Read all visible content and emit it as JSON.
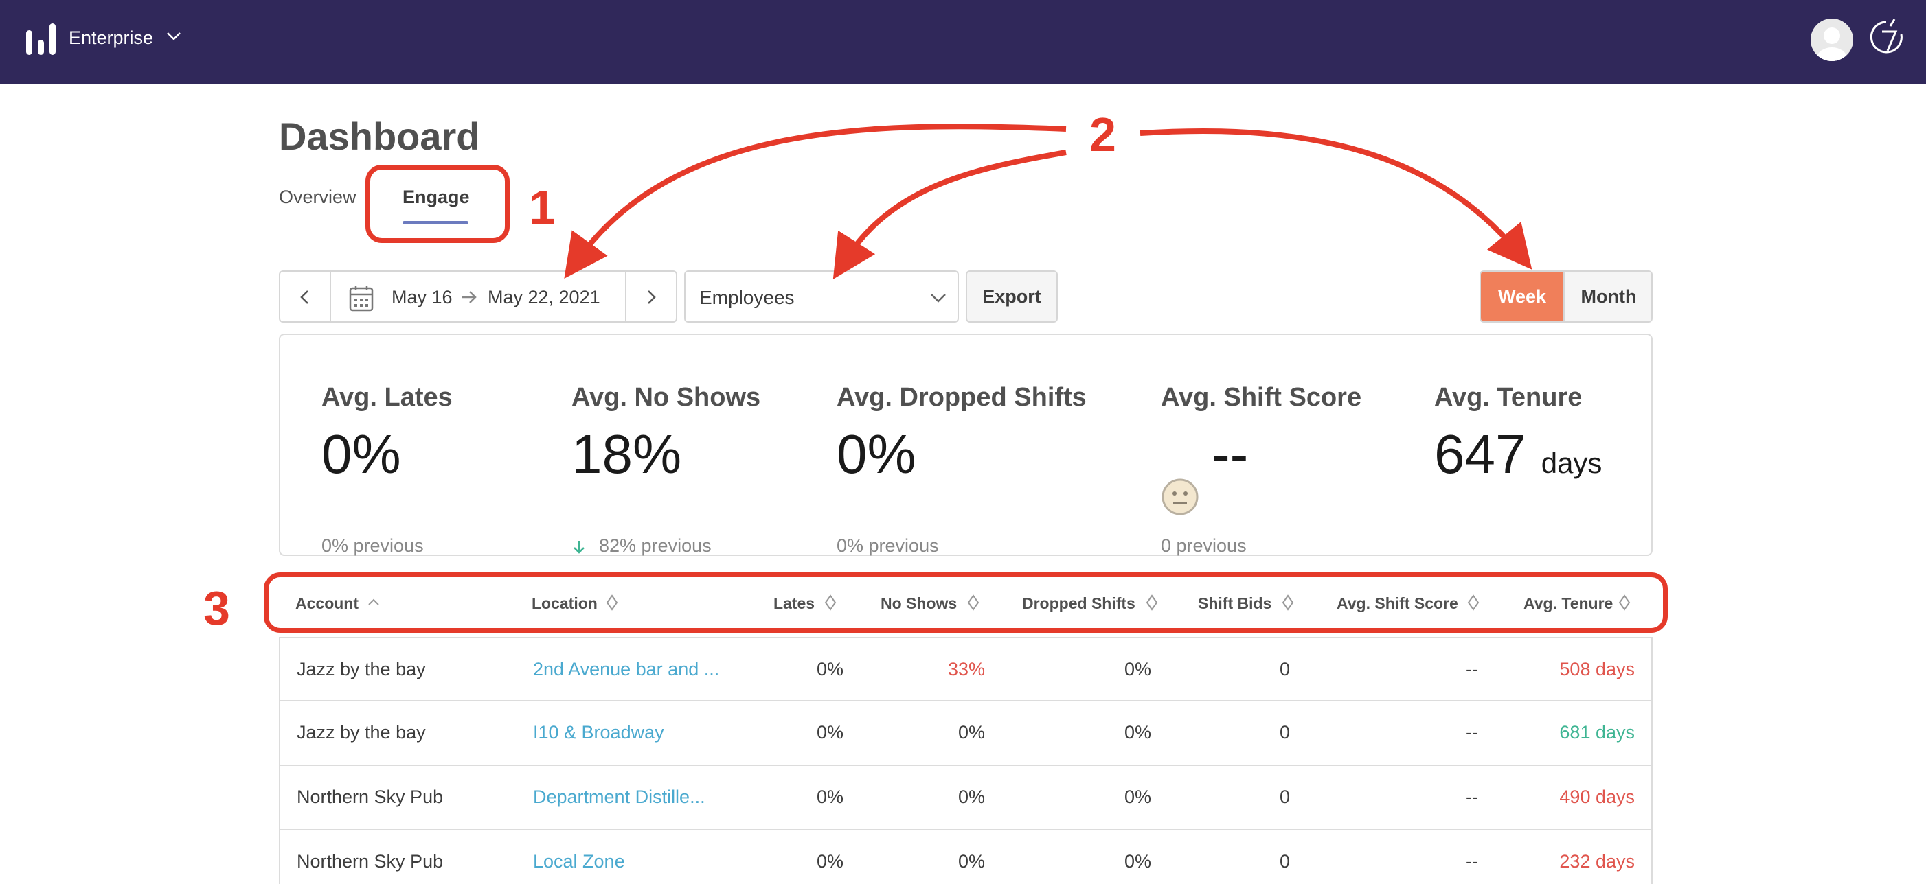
{
  "topbar": {
    "org_name": "Enterprise",
    "icons": {
      "logo": "bar-logo-icon",
      "org_menu": "chevron-down-icon",
      "avatar": "user-avatar",
      "brand": "seven-brand-icon"
    }
  },
  "page": {
    "title": "Dashboard"
  },
  "tabs": [
    {
      "label": "Overview",
      "active": false
    },
    {
      "label": "Engage",
      "active": true
    }
  ],
  "toolbar": {
    "date_start": "May 16",
    "date_end": "May 22, 2021",
    "filter_value": "Employees",
    "export_label": "Export",
    "period_options": [
      "Week",
      "Month"
    ],
    "period_selected": "Week"
  },
  "stats": [
    {
      "title": "Avg. Lates",
      "value": "0%",
      "previous": "0% previous"
    },
    {
      "title": "Avg. No Shows",
      "value": "18%",
      "previous": "82% previous",
      "trend": "down"
    },
    {
      "title": "Avg. Dropped Shifts",
      "value": "0%",
      "previous": "0% previous"
    },
    {
      "title": "Avg. Shift Score",
      "value": "--",
      "previous": "0 previous",
      "icon": "neutral-face-icon"
    },
    {
      "title": "Avg. Tenure",
      "value": "647",
      "unit": "days"
    }
  ],
  "table": {
    "columns": [
      "Account",
      "Location",
      "Lates",
      "No Shows",
      "Dropped Shifts",
      "Shift Bids",
      "Avg. Shift Score",
      "Avg. Tenure"
    ],
    "sort": {
      "column": "Account",
      "direction": "asc"
    },
    "rows": [
      {
        "account": "Jazz by the bay",
        "location": "2nd Avenue bar and ...",
        "lates": "0%",
        "no_shows": "33%",
        "dropped": "0%",
        "bids": "0",
        "score": "--",
        "tenure": "508 days"
      },
      {
        "account": "Jazz by the bay",
        "location": "I10 & Broadway",
        "lates": "0%",
        "no_shows": "0%",
        "dropped": "0%",
        "bids": "0",
        "score": "--",
        "tenure": "681 days"
      },
      {
        "account": "Northern Sky Pub",
        "location": "Department Distille...",
        "lates": "0%",
        "no_shows": "0%",
        "dropped": "0%",
        "bids": "0",
        "score": "--",
        "tenure": "490 days"
      },
      {
        "account": "Northern Sky Pub",
        "location": "Local Zone",
        "lates": "0%",
        "no_shows": "0%",
        "dropped": "0%",
        "bids": "0",
        "score": "--",
        "tenure": "232 days"
      }
    ]
  },
  "annotations": {
    "label_1": "1",
    "label_2": "2",
    "label_3": "3",
    "color": "#e53a2a"
  },
  "colors": {
    "topbar": "#30285a",
    "accent": "#f07f5a",
    "link": "#4aa9cf",
    "negative": "#e0554d",
    "positive": "#3fb593"
  }
}
